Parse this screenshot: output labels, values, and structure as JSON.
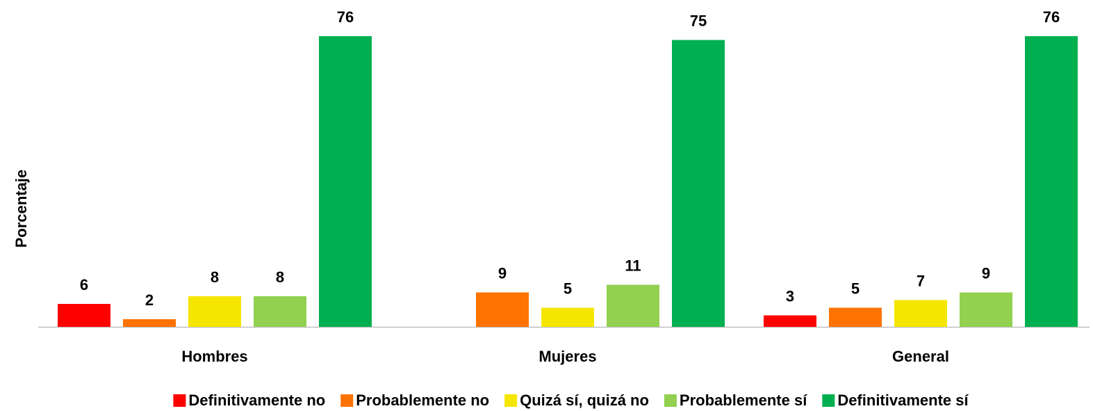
{
  "chart_data": {
    "type": "bar",
    "y_label": "Porcentaje",
    "categories": [
      "Hombres",
      "Mujeres",
      "General"
    ],
    "series": [
      {
        "name": "Definitivamente no",
        "color": "#ff0000",
        "values": [
          6,
          null,
          3
        ]
      },
      {
        "name": "Probablemente no",
        "color": "#ff7300",
        "values": [
          2,
          9,
          5
        ]
      },
      {
        "name": "Quizá sí, quizá no",
        "color": "#f5e600",
        "values": [
          8,
          5,
          7
        ]
      },
      {
        "name": "Probablemente sí",
        "color": "#92d050",
        "values": [
          8,
          11,
          9
        ]
      },
      {
        "name": "Definitivamente sí",
        "color": "#00b050",
        "values": [
          76,
          75,
          76
        ]
      }
    ],
    "ylim": [
      0,
      76
    ],
    "legend": "bottom"
  }
}
